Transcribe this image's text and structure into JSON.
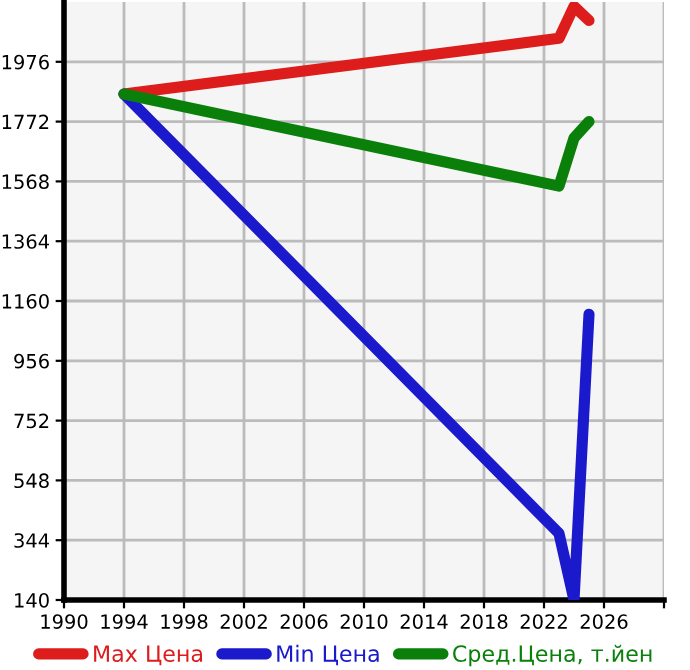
{
  "chart_data": {
    "type": "line",
    "x": [
      1994,
      2023,
      2024,
      2025
    ],
    "series": [
      {
        "name": "Max Цена",
        "color": "#dd1c1c",
        "values": [
          1866,
          2056,
          2165,
          2117
        ]
      },
      {
        "name": "Min Цена",
        "color": "#1a1acc",
        "values": [
          1866,
          367,
          140,
          1115
        ]
      },
      {
        "name": "Сред.Цена, т.йен",
        "color": "#0a800a",
        "values": [
          1866,
          1552,
          1716,
          1772
        ]
      }
    ],
    "xlim": [
      1990,
      2030
    ],
    "xticks": [
      1990,
      1994,
      1998,
      2002,
      2006,
      2010,
      2014,
      2018,
      2022,
      2026,
      {
        "value": 2030,
        "label": null
      }
    ],
    "ylim": [
      140,
      2180
    ],
    "yticks": [
      140,
      344,
      548,
      752,
      956,
      1160,
      1364,
      1568,
      1772,
      1976
    ],
    "grid": true,
    "legend": "bottom",
    "marker": "none",
    "line_style": "solid"
  }
}
